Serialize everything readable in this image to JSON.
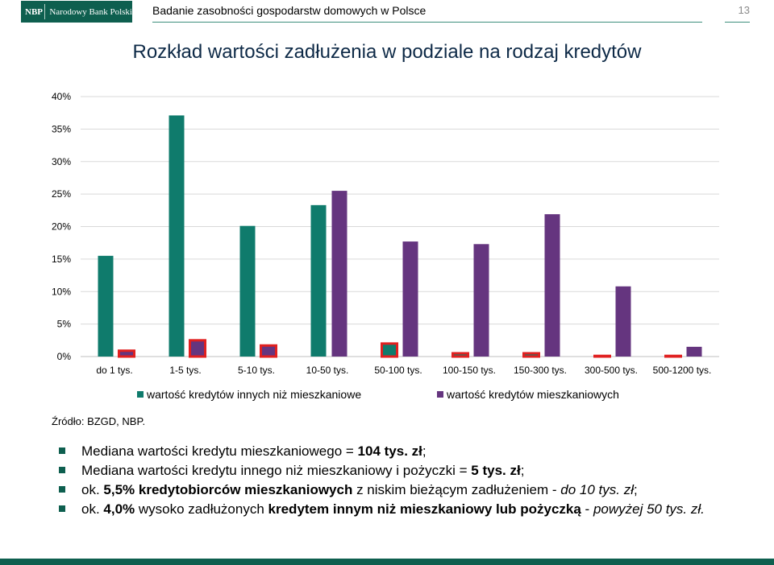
{
  "header": {
    "logo_mark": "NBP",
    "logo_text": "Narodowy Bank Polski",
    "title": "Badanie zasobności gospodarstw domowych w Polsce",
    "page_number": "13"
  },
  "colors": {
    "teal": "#0f7b6c",
    "purple": "#65357f",
    "highlight": "#e02020",
    "brand": "#0e5f4f"
  },
  "chart_data": {
    "type": "bar",
    "title": "Rozkład wartości zadłużenia w podziale na rodzaj kredytów",
    "categories": [
      "do 1 tys.",
      "1-5 tys.",
      "5-10 tys.",
      "10-50 tys.",
      "50-100 tys.",
      "100-150 tys.",
      "150-300 tys.",
      "300-500 tys.",
      "500-1200 tys."
    ],
    "series": [
      {
        "name": "wartość kredytów innych niż mieszkaniowe",
        "values": [
          15.5,
          37.1,
          20.1,
          23.3,
          2.0,
          0.5,
          0.5,
          0.1,
          0.1
        ]
      },
      {
        "name": "wartość kredytów mieszkaniowych",
        "values": [
          0.9,
          2.5,
          1.7,
          25.5,
          17.7,
          17.3,
          21.9,
          10.8,
          1.5
        ]
      }
    ],
    "highlighted": [
      {
        "series": 1,
        "index": 0
      },
      {
        "series": 1,
        "index": 1
      },
      {
        "series": 1,
        "index": 2
      },
      {
        "series": 0,
        "index": 4
      },
      {
        "series": 0,
        "index": 5
      },
      {
        "series": 0,
        "index": 6
      },
      {
        "series": 0,
        "index": 7
      },
      {
        "series": 0,
        "index": 8
      }
    ],
    "yticks": [
      "0%",
      "5%",
      "10%",
      "15%",
      "20%",
      "25%",
      "30%",
      "35%",
      "40%"
    ],
    "ylim": [
      0,
      40
    ],
    "grid": true,
    "legend_position": "bottom"
  },
  "source": "Źródło: BZGD, NBP.",
  "bullets": [
    [
      {
        "t": "Mediana wartości kredytu mieszkaniowego = "
      },
      {
        "t": "104 tys. zł",
        "b": true
      },
      {
        "t": "; "
      }
    ],
    [
      {
        "t": "Mediana wartości kredytu innego niż mieszkaniowy i pożyczki = "
      },
      {
        "t": "5 tys. zł",
        "b": true
      },
      {
        "t": ";"
      }
    ],
    [
      {
        "t": "ok. "
      },
      {
        "t": "5,5% kredytobiorców mieszkaniowych",
        "b": true
      },
      {
        "t": " z niskim bieżącym zadłużeniem - "
      },
      {
        "t": "do 10 tys. zł",
        "i": true
      },
      {
        "t": ";"
      }
    ],
    [
      {
        "t": "ok. "
      },
      {
        "t": "4,0%",
        "b": true
      },
      {
        "t": " wysoko zadłużonych "
      },
      {
        "t": "kredytem innym niż mieszkaniowy lub pożyczką",
        "b": true
      },
      {
        "t": " - "
      },
      {
        "t": "powyżej 50 tys. zł.",
        "i": true
      }
    ]
  ]
}
